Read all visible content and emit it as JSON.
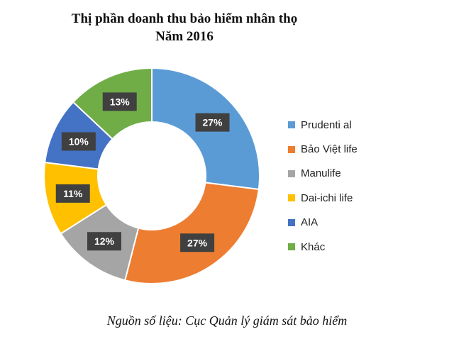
{
  "title": "Thị phần doanh thu bảo hiểm nhân thọ",
  "subtitle": "Năm 2016",
  "source": "Nguồn số liệu: Cục Quản lý giám sát bảo hiểm",
  "chart_data": {
    "type": "pie",
    "donut": true,
    "title": "Thị phần doanh thu bảo hiểm nhân thọ",
    "subtitle": "Năm 2016",
    "legend_position": "right",
    "categories": [
      "Prudenti al",
      "Bảo Việt life",
      "Manulife",
      "Dai-ichi life",
      "AIA",
      "Khác"
    ],
    "values": [
      27,
      27,
      12,
      11,
      10,
      13
    ],
    "labels": [
      "27%",
      "27%",
      "12%",
      "11%",
      "10%",
      "13%"
    ],
    "colors": [
      "#5b9bd5",
      "#ed7d31",
      "#a5a5a5",
      "#ffc000",
      "#4472c4",
      "#70ad47"
    ],
    "unit": "%"
  }
}
